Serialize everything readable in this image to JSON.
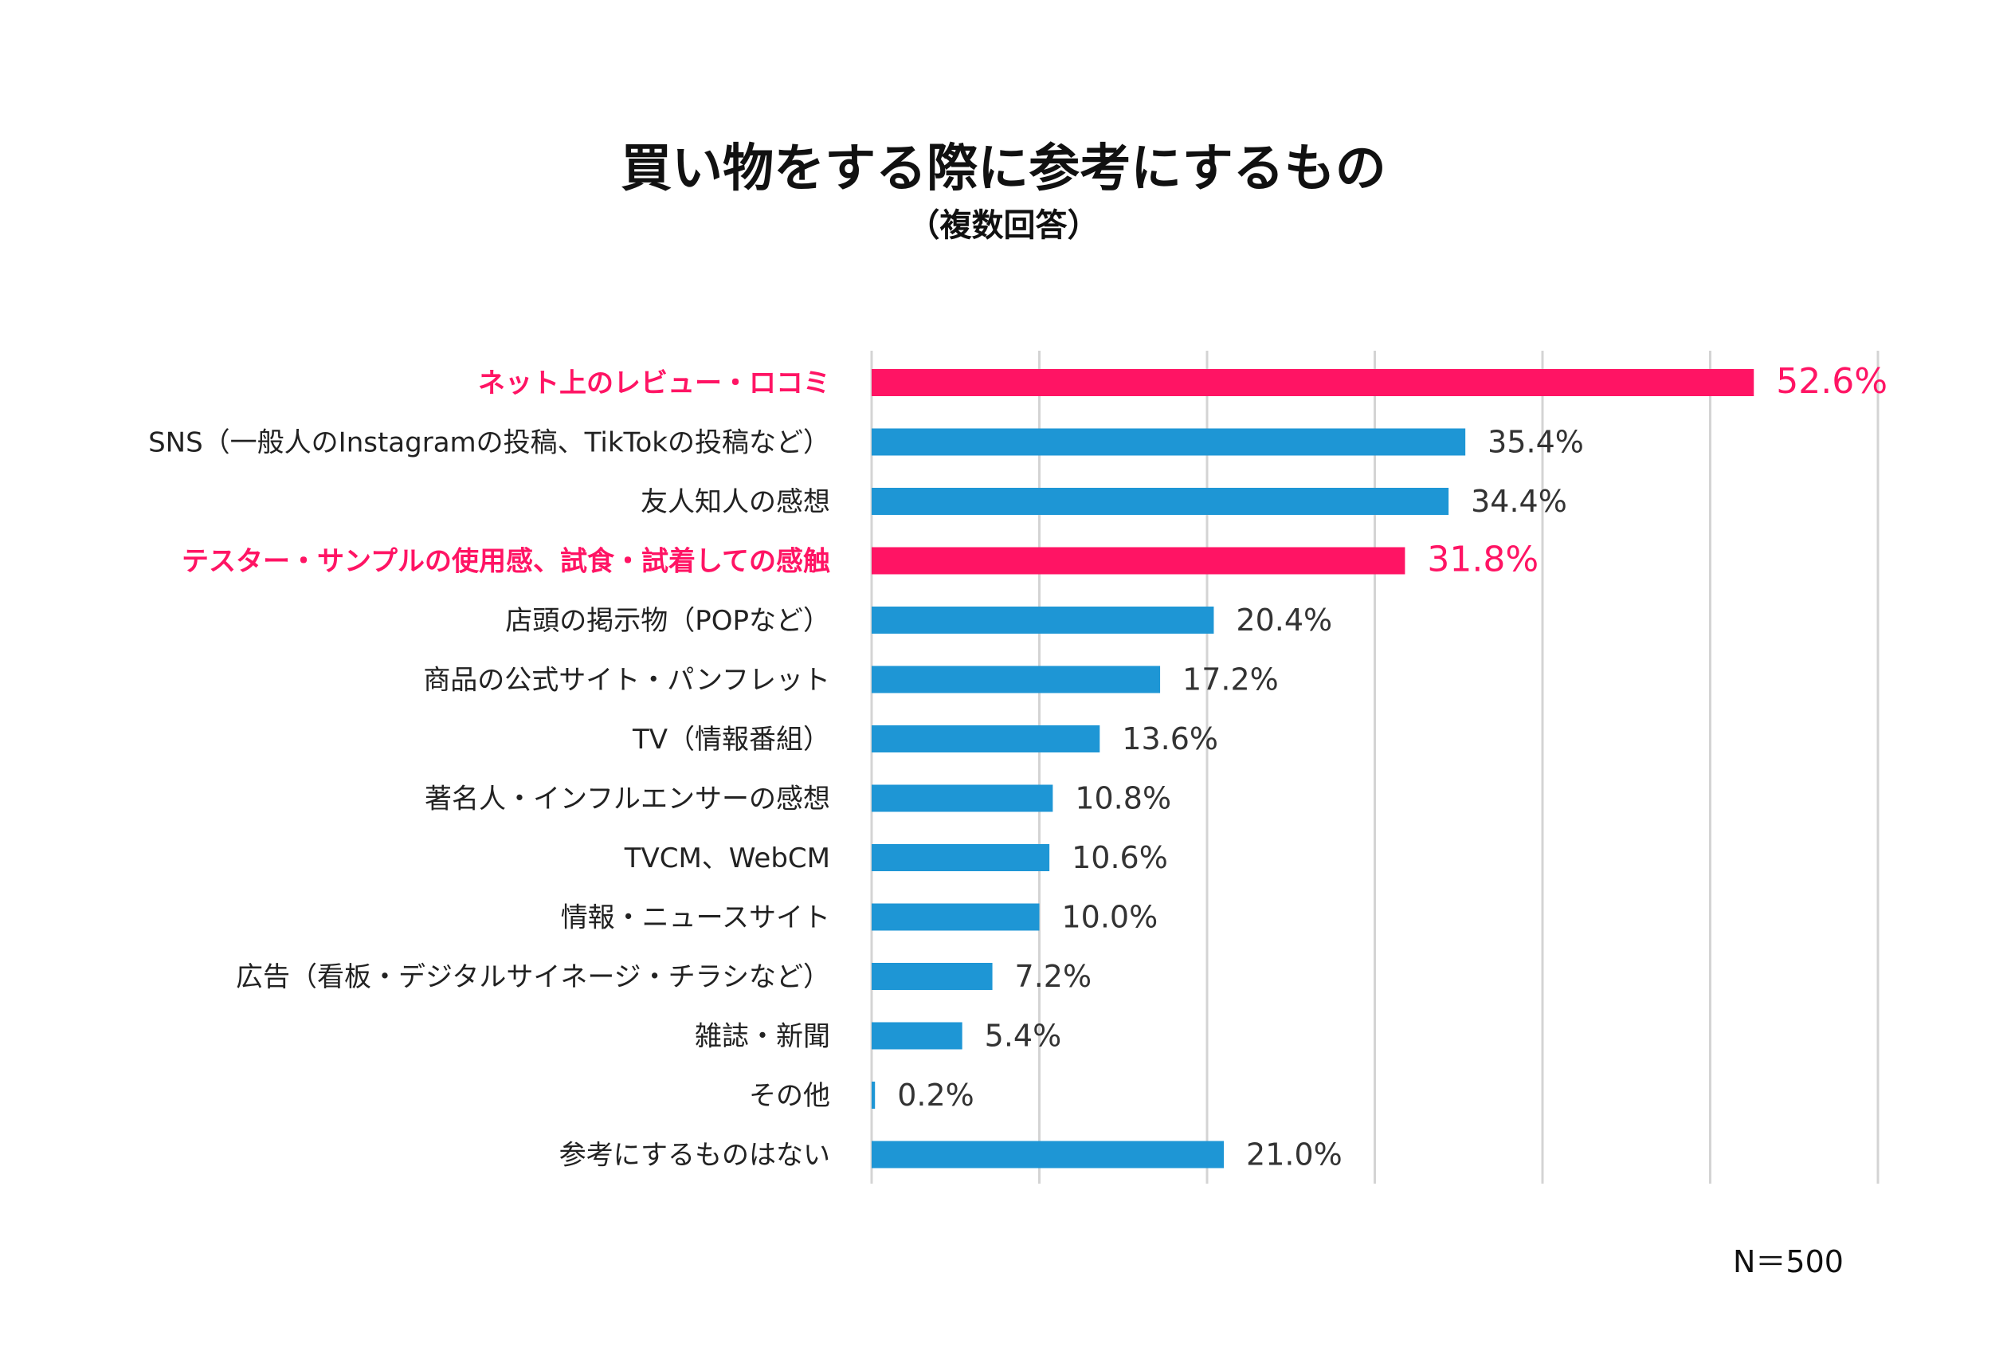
{
  "chart_data": {
    "type": "bar",
    "orientation": "horizontal",
    "title": "買い物をする際に参考にするもの",
    "subtitle": "（複数回答）",
    "note": "N＝500",
    "xlim": [
      0,
      60
    ],
    "grid": true,
    "colors": {
      "default": "#1e96d5",
      "highlight": "#ff1464"
    },
    "categories": [
      "ネット上のレビュー・ロコミ",
      "SNS（一般人のInstagramの投稿、TikTokの投稿など）",
      "友人知人の感想",
      "テスター・サンプルの使用感、試食・試着しての感触",
      "店頭の掲示物（POPなど）",
      "商品の公式サイト・パンフレット",
      "TV（情報番組）",
      "著名人・インフルエンサーの感想",
      "TVCM、WebCM",
      "情報・ニュースサイト",
      "広告（看板・デジタルサイネージ・チラシなど）",
      "雑誌・新聞",
      "その他",
      "参考にするものはない"
    ],
    "values": [
      52.6,
      35.4,
      34.4,
      31.8,
      20.4,
      17.2,
      13.6,
      10.8,
      10.6,
      10.0,
      7.2,
      5.4,
      0.2,
      21.0
    ],
    "value_labels": [
      "52.6%",
      "35.4%",
      "34.4%",
      "31.8%",
      "20.4%",
      "17.2%",
      "13.6%",
      "10.8%",
      "10.6%",
      "10.0%",
      "7.2%",
      "5.4%",
      "0.2%",
      "21.0%"
    ],
    "highlight": [
      true,
      false,
      false,
      true,
      false,
      false,
      false,
      false,
      false,
      false,
      false,
      false,
      false,
      false
    ]
  }
}
